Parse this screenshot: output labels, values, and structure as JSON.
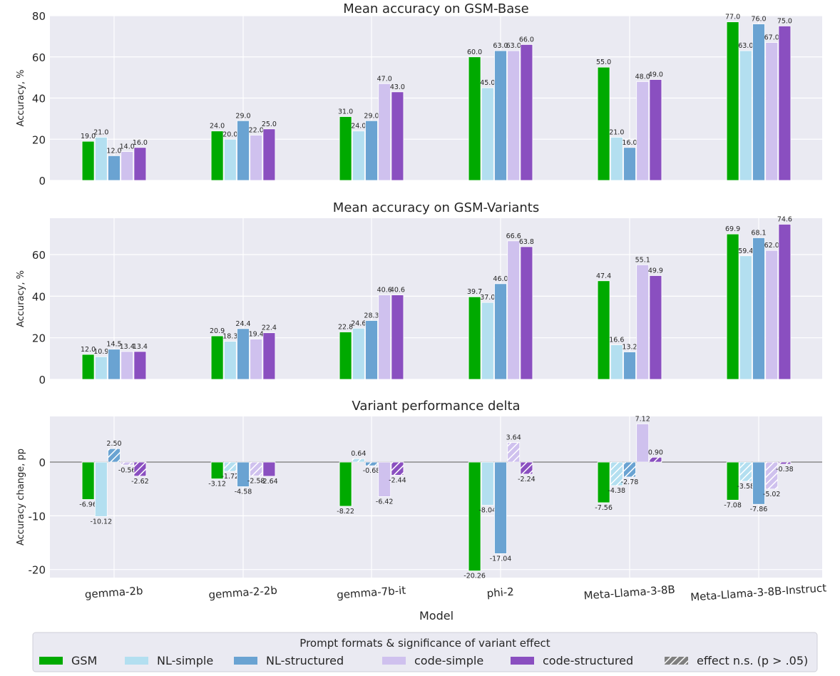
{
  "chart_data": [
    {
      "type": "bar",
      "title": "Mean accuracy on GSM-Base",
      "xlabel": "",
      "ylabel": "Accuracy, %",
      "ylim": [
        0,
        80
      ],
      "yticks": [
        0,
        20,
        40,
        60,
        80
      ],
      "value_format": 1,
      "categories": [
        "gemma-2b",
        "gemma-2-2b",
        "gemma-7b-it",
        "phi-2",
        "Meta-Llama-3-8B",
        "Meta-Llama-3-8B-Instruct"
      ],
      "series": [
        {
          "name": "GSM",
          "color": "#00aa00",
          "values": [
            19.0,
            24.0,
            31.0,
            60.0,
            55.0,
            77.0
          ]
        },
        {
          "name": "NL-simple",
          "color": "#b3dff0",
          "values": [
            21.0,
            20.0,
            24.0,
            45.0,
            21.0,
            63.0
          ]
        },
        {
          "name": "NL-structured",
          "color": "#6aa3d2",
          "values": [
            12.0,
            29.0,
            29.0,
            63.0,
            16.0,
            76.0
          ]
        },
        {
          "name": "code-simple",
          "color": "#cfc1ee",
          "values": [
            14.0,
            22.0,
            47.0,
            63.0,
            48.0,
            67.0
          ]
        },
        {
          "name": "code-structured",
          "color": "#8a4fc0",
          "values": [
            16.0,
            25.0,
            43.0,
            66.0,
            49.0,
            75.0
          ]
        }
      ]
    },
    {
      "type": "bar",
      "title": "Mean accuracy on GSM-Variants",
      "xlabel": "",
      "ylabel": "Accuracy, %",
      "ylim": [
        0,
        77.5
      ],
      "yticks": [
        0,
        20,
        40,
        60
      ],
      "value_format": 1,
      "categories": [
        "gemma-2b",
        "gemma-2-2b",
        "gemma-7b-it",
        "phi-2",
        "Meta-Llama-3-8B",
        "Meta-Llama-3-8B-Instruct"
      ],
      "series": [
        {
          "name": "GSM",
          "color": "#00aa00",
          "values": [
            12.0,
            20.9,
            22.8,
            39.7,
            47.4,
            69.9
          ]
        },
        {
          "name": "NL-simple",
          "color": "#b3dff0",
          "values": [
            10.9,
            18.3,
            24.6,
            37.0,
            16.6,
            59.4
          ]
        },
        {
          "name": "NL-structured",
          "color": "#6aa3d2",
          "values": [
            14.5,
            24.4,
            28.3,
            46.0,
            13.2,
            68.1
          ]
        },
        {
          "name": "code-simple",
          "color": "#cfc1ee",
          "values": [
            13.4,
            19.4,
            40.6,
            66.6,
            55.1,
            62.0
          ]
        },
        {
          "name": "code-structured",
          "color": "#8a4fc0",
          "values": [
            13.4,
            22.4,
            40.6,
            63.8,
            49.9,
            74.6
          ]
        }
      ]
    },
    {
      "type": "bar",
      "title": "Variant performance delta",
      "xlabel": "Model",
      "ylabel": "Accuracy change, pp",
      "ylim": [
        -21.5,
        8.5
      ],
      "yticks": [
        -20,
        -10,
        0
      ],
      "value_format": 2,
      "zero_line": true,
      "categories": [
        "gemma-2b",
        "gemma-2-2b",
        "gemma-7b-it",
        "phi-2",
        "Meta-Llama-3-8B",
        "Meta-Llama-3-8B-Instruct"
      ],
      "series": [
        {
          "name": "GSM",
          "color": "#00aa00",
          "values": [
            -6.96,
            -3.12,
            -8.22,
            -20.26,
            -7.56,
            -7.08
          ],
          "not_significant": [
            false,
            false,
            false,
            false,
            false,
            false
          ]
        },
        {
          "name": "NL-simple",
          "color": "#b3dff0",
          "values": [
            -10.12,
            -1.72,
            0.64,
            -8.04,
            -4.38,
            -3.58
          ],
          "not_significant": [
            false,
            true,
            true,
            false,
            true,
            true
          ]
        },
        {
          "name": "NL-structured",
          "color": "#6aa3d2",
          "values": [
            2.5,
            -4.58,
            -0.68,
            -17.04,
            -2.78,
            -7.86
          ],
          "not_significant": [
            true,
            false,
            true,
            false,
            true,
            false
          ]
        },
        {
          "name": "code-simple",
          "color": "#cfc1ee",
          "values": [
            -0.56,
            -2.58,
            -6.42,
            3.64,
            7.12,
            -5.02
          ],
          "not_significant": [
            true,
            true,
            false,
            true,
            false,
            true
          ]
        },
        {
          "name": "code-structured",
          "color": "#8a4fc0",
          "values": [
            -2.62,
            -2.64,
            -2.44,
            -2.24,
            0.9,
            -0.38
          ],
          "not_significant": [
            true,
            false,
            true,
            true,
            true,
            true
          ]
        }
      ]
    }
  ],
  "legend": {
    "title": "Prompt formats & significance of variant effect",
    "placement": "bottom-center",
    "items": [
      {
        "label": "GSM",
        "color": "#00aa00",
        "hatched": false
      },
      {
        "label": "NL-simple",
        "color": "#b3dff0",
        "hatched": false
      },
      {
        "label": "NL-structured",
        "color": "#6aa3d2",
        "hatched": false
      },
      {
        "label": "code-simple",
        "color": "#cfc1ee",
        "hatched": false
      },
      {
        "label": "code-structured",
        "color": "#8a4fc0",
        "hatched": false
      },
      {
        "label": "effect n.s. (p > .05)",
        "color": "#808080",
        "hatched": true
      }
    ]
  },
  "style": {
    "panel_bg": "#eaeaf2",
    "grid": true,
    "grid_color": "#ffffff",
    "text_color": "#262626"
  }
}
